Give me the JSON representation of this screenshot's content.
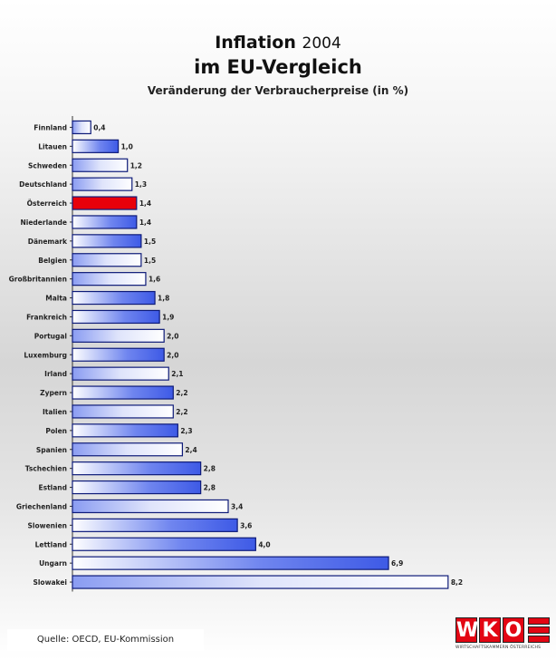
{
  "header": {
    "title_main": "Inflation",
    "title_year": "2004",
    "title_line2": "im EU-Vergleich",
    "subtitle": "Veränderung der Verbraucherpreise (in %)"
  },
  "chart_data": {
    "type": "bar",
    "orientation": "horizontal",
    "title": "Inflation 2004 im EU-Vergleich",
    "subtitle": "Veränderung der Verbraucherpreise (in %)",
    "categories": [
      "Finnland",
      "Litauen",
      "Schweden",
      "Deutschland",
      "Österreich",
      "Niederlande",
      "Dänemark",
      "Belgien",
      "Großbritannien",
      "Malta",
      "Frankreich",
      "Portugal",
      "Luxemburg",
      "Irland",
      "Zypern",
      "Italien",
      "Polen",
      "Spanien",
      "Tschechien",
      "Estland",
      "Griechenland",
      "Slowenien",
      "Lettland",
      "Ungarn",
      "Slowakei"
    ],
    "values": [
      0.4,
      1.0,
      1.2,
      1.3,
      1.4,
      1.4,
      1.5,
      1.5,
      1.6,
      1.8,
      1.9,
      2.0,
      2.0,
      2.1,
      2.2,
      2.2,
      2.3,
      2.4,
      2.8,
      2.8,
      3.4,
      3.6,
      4.0,
      6.9,
      8.2
    ],
    "value_labels": [
      "0,4",
      "1,0",
      "1,2",
      "1,3",
      "1,4",
      "1,4",
      "1,5",
      "1,5",
      "1,6",
      "1,8",
      "1,9",
      "2,0",
      "2,0",
      "2,1",
      "2,2",
      "2,2",
      "2,3",
      "2,4",
      "2,8",
      "2,8",
      "3,4",
      "3,6",
      "4,0",
      "6,9",
      "8,2"
    ],
    "bar_styles": [
      "light",
      "dark",
      "light",
      "light",
      "highlight",
      "dark",
      "dark",
      "light",
      "light",
      "dark",
      "dark",
      "light",
      "dark",
      "light",
      "dark",
      "light",
      "dark",
      "light",
      "dark",
      "dark",
      "light",
      "dark",
      "dark",
      "dark",
      "light"
    ],
    "highlight_category": "Österreich",
    "xlim": [
      0,
      8.5
    ],
    "colors": {
      "bar_dark": "#3e5ae6",
      "bar_light": "#ffffff",
      "highlight": "#e8000a",
      "outline": "#0d1a78"
    }
  },
  "footer": {
    "source_label": "Quelle:",
    "source_text": "OECD, EU-Kommission"
  },
  "logo": {
    "letters": [
      "W",
      "K",
      "O"
    ],
    "text": "WIRTSCHAFTSKAMMERN ÖSTERREICHS",
    "color": "#e30613"
  }
}
